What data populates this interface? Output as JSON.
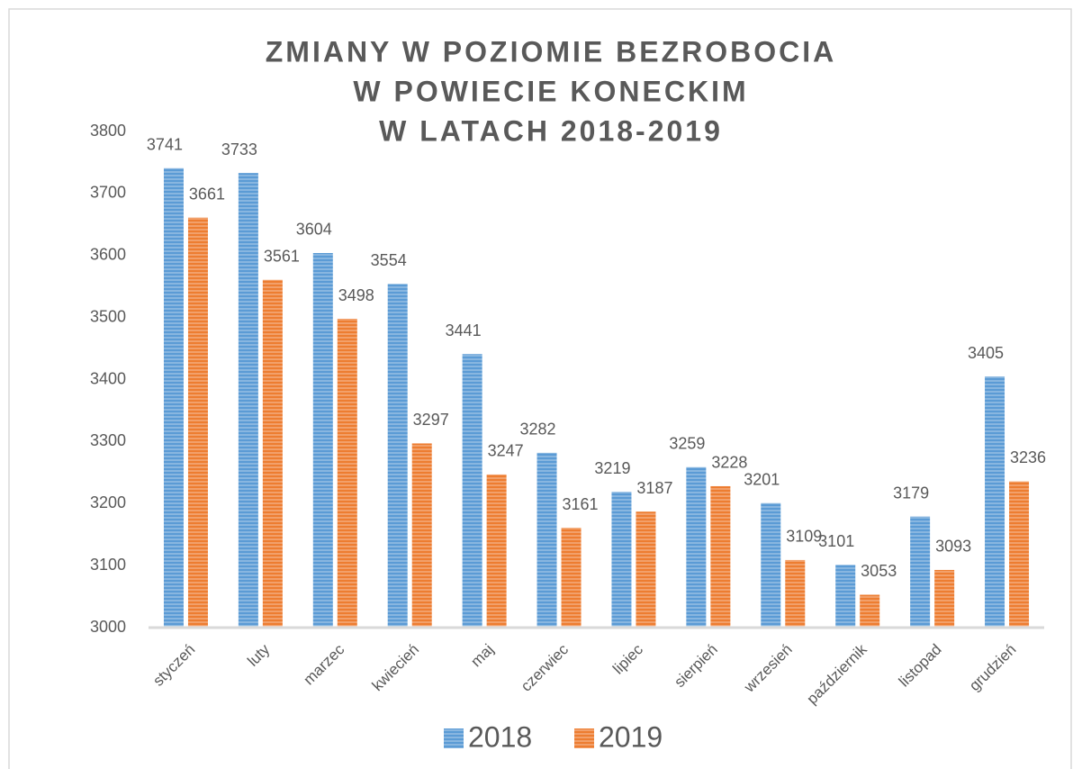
{
  "chart_data": {
    "type": "bar",
    "title": [
      "ZMIANY W POZIOMIE BEZROBOCIA",
      "W POWIECIE KONECKIM",
      "W LATACH 2018-2019"
    ],
    "categories": [
      "styczeń",
      "luty",
      "marzec",
      "kwiecień",
      "maj",
      "czerwiec",
      "lipiec",
      "sierpień",
      "wrzesień",
      "październik",
      "listopad",
      "grudzień"
    ],
    "series": [
      {
        "name": "2018",
        "color": "#5b9bd5",
        "values": [
          3741,
          3733,
          3604,
          3554,
          3441,
          3282,
          3219,
          3259,
          3201,
          3101,
          3179,
          3405
        ]
      },
      {
        "name": "2019",
        "color": "#ed7d31",
        "values": [
          3661,
          3561,
          3498,
          3297,
          3247,
          3161,
          3187,
          3228,
          3109,
          3053,
          3093,
          3236
        ]
      }
    ],
    "ylim": [
      3000,
      3800
    ],
    "yticks": [
      3000,
      3100,
      3200,
      3300,
      3400,
      3500,
      3600,
      3700,
      3800
    ],
    "grid": false,
    "legend": "bottom"
  }
}
